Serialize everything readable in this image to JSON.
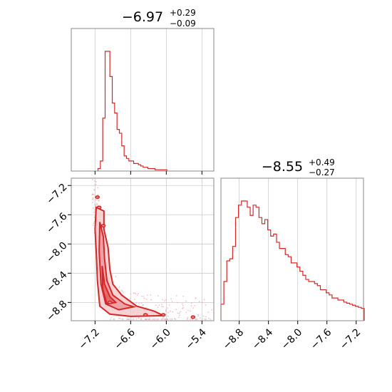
{
  "chart_data": [
    {
      "type": "histogram",
      "panel": "top-left",
      "title": {
        "value": "−6.97",
        "plus": "+0.29",
        "minus": "−0.09"
      },
      "xlim": [
        -7.6,
        -5.2
      ],
      "x_ticks": [
        -7.2,
        -6.6,
        -6.0,
        -5.4
      ],
      "grid": true,
      "color": "#d62728",
      "bin_start": -7.15,
      "bin_width": 0.04,
      "counts": [
        2,
        8,
        42,
        95,
        95,
        75,
        54,
        46,
        33,
        30,
        20,
        12,
        10,
        8,
        8,
        6,
        6,
        5,
        4,
        3,
        3,
        2,
        2,
        2,
        1,
        1,
        1,
        1,
        1
      ]
    },
    {
      "type": "histogram",
      "panel": "bottom-right",
      "title": {
        "value": "−8.55",
        "plus": "+0.49",
        "minus": "−0.27"
      },
      "xlim": [
        -9.05,
        -7.1
      ],
      "x_ticks": [
        -8.8,
        -8.4,
        -8.0,
        -7.6,
        -7.2
      ],
      "x_tick_labels": [
        "−8.8",
        "−8.4",
        "−8.0",
        "−7.6",
        "−7.2"
      ],
      "grid": true,
      "color": "#d62728",
      "bin_start": -9.05,
      "bin_width": 0.04,
      "counts": [
        16,
        38,
        58,
        60,
        72,
        100,
        112,
        116,
        116,
        110,
        102,
        112,
        110,
        100,
        94,
        98,
        88,
        82,
        84,
        76,
        70,
        70,
        64,
        62,
        56,
        56,
        52,
        48,
        44,
        40,
        38,
        38,
        36,
        34,
        30,
        30,
        27,
        25,
        22,
        22,
        20,
        20,
        18,
        17,
        16,
        15,
        14,
        13,
        12
      ]
    },
    {
      "type": "scatter-contour",
      "panel": "bottom-left",
      "xlim": [
        -7.6,
        -5.2
      ],
      "ylim": [
        -9.05,
        -7.1
      ],
      "x_ticks": [
        -7.2,
        -6.6,
        -6.0,
        -5.4
      ],
      "x_tick_labels": [
        "−7.2",
        "−6.6",
        "−6.0",
        "−5.4"
      ],
      "y_ticks": [
        -7.2,
        -7.6,
        -8.0,
        -8.4,
        -8.8
      ],
      "y_tick_labels": [
        "−7.2",
        "−7.6",
        "−8.0",
        "−8.4",
        "−8.8"
      ],
      "grid": true,
      "color": "#d62728",
      "contour_outer": [
        [
          -7.18,
          -7.5
        ],
        [
          -7.05,
          -7.55
        ],
        [
          -7.05,
          -7.8
        ],
        [
          -6.98,
          -8.05
        ],
        [
          -6.95,
          -8.35
        ],
        [
          -6.9,
          -8.55
        ],
        [
          -6.75,
          -8.7
        ],
        [
          -6.5,
          -8.85
        ],
        [
          -6.2,
          -8.92
        ],
        [
          -6.05,
          -8.98
        ],
        [
          -6.6,
          -8.99
        ],
        [
          -6.95,
          -8.96
        ],
        [
          -7.12,
          -8.85
        ],
        [
          -7.16,
          -8.5
        ],
        [
          -7.18,
          -8.1
        ],
        [
          -7.2,
          -7.8
        ]
      ],
      "contour_inner": [
        [
          -7.12,
          -7.7
        ],
        [
          -7.06,
          -7.9
        ],
        [
          -7.04,
          -8.2
        ],
        [
          -7.0,
          -8.5
        ],
        [
          -6.9,
          -8.7
        ],
        [
          -6.7,
          -8.82
        ],
        [
          -6.55,
          -8.86
        ],
        [
          -6.8,
          -8.9
        ],
        [
          -7.02,
          -8.82
        ],
        [
          -7.1,
          -8.55
        ],
        [
          -7.13,
          -8.1
        ]
      ],
      "contour_core": [
        [
          -7.08,
          -8.3
        ],
        [
          -7.04,
          -8.55
        ],
        [
          -6.95,
          -8.72
        ],
        [
          -6.85,
          -8.8
        ],
        [
          -7.0,
          -8.82
        ],
        [
          -7.07,
          -8.62
        ]
      ],
      "islands": [
        [
          -7.16,
          -7.36
        ],
        [
          -7.13,
          -7.5
        ],
        [
          -7.06,
          -7.75
        ],
        [
          -6.95,
          -8.8
        ],
        [
          -6.35,
          -8.97
        ],
        [
          -6.05,
          -8.97
        ],
        [
          -5.55,
          -9.0
        ]
      ]
    }
  ]
}
